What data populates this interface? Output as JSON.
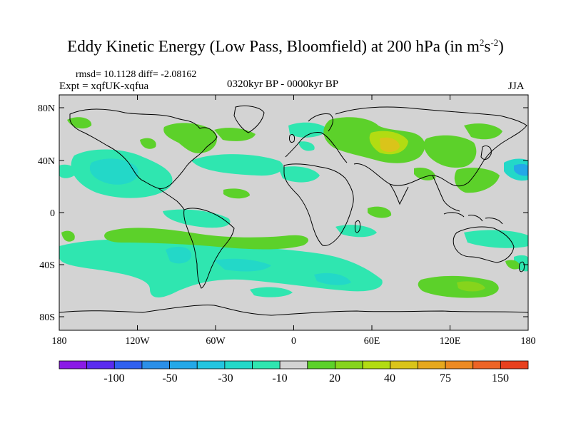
{
  "title": {
    "main": "Eddy Kinetic Energy (Low Pass, Bloomfield) at 200 hPa (in m",
    "sup1": "2",
    "mid": "s",
    "sup2": "-2",
    "close": ")"
  },
  "stats": {
    "rmsd": "rmsd= 10.1128 diff= -2.08162",
    "expt": "Expt = xqfUK-xqfua",
    "period": "0320kyr BP - 0000kyr BP",
    "season": "JJA"
  },
  "map": {
    "lat_ticks": [
      "80N",
      "40N",
      "0",
      "40S",
      "80S"
    ],
    "lon_ticks": [
      "180",
      "120W",
      "60W",
      "0",
      "60E",
      "120E",
      "180"
    ],
    "background_color": "#d3d3d3"
  },
  "colorbar": {
    "colors": [
      "#8a1ae6",
      "#5a2cf0",
      "#3060f0",
      "#2b8fe8",
      "#24a8e8",
      "#23c5e0",
      "#23d8c8",
      "#2fe6b0",
      "#d3d3d3",
      "#5cd12a",
      "#86d41c",
      "#b2dc12",
      "#dac41a",
      "#e6a81e",
      "#ec8a22",
      "#ec6426",
      "#e8401e"
    ],
    "labels": [
      "-100",
      "-50",
      "-30",
      "-10",
      "20",
      "40",
      "75",
      "150"
    ]
  }
}
